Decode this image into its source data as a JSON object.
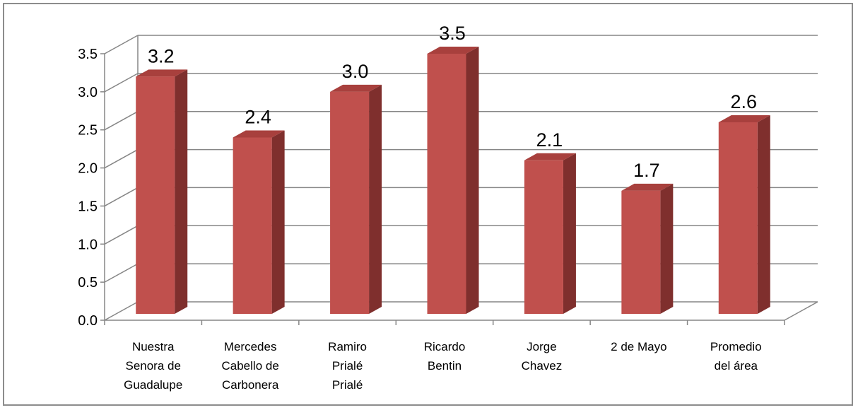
{
  "chart_data": {
    "type": "bar",
    "title": "",
    "xlabel": "",
    "ylabel": "",
    "ylim": [
      0,
      3.5
    ],
    "yticks": [
      "0.0",
      "0.5",
      "1.0",
      "1.5",
      "2.0",
      "2.5",
      "3.0",
      "3.5"
    ],
    "grid": true,
    "legend": "none",
    "style": "3d-column",
    "categories": [
      [
        "Nuestra",
        "Senora de",
        "Guadalupe"
      ],
      [
        "Mercedes",
        "Cabello de",
        "Carbonera"
      ],
      [
        "Ramiro",
        "Prialé",
        "Prialé"
      ],
      [
        "Ricardo",
        "Bentin"
      ],
      [
        "Jorge",
        "Chavez"
      ],
      [
        "2 de Mayo"
      ],
      [
        "Promedio",
        "del área"
      ]
    ],
    "values": [
      3.2,
      2.4,
      3.0,
      3.5,
      2.1,
      1.7,
      2.6
    ],
    "data_labels": [
      "3.2",
      "2.4",
      "3.0",
      "3.5",
      "2.1",
      "1.7",
      "2.6"
    ],
    "colors": {
      "bar_front": "#c0504d",
      "bar_side": "#7f2f2d",
      "bar_top": "#a8403d",
      "grid": "#868686"
    }
  }
}
